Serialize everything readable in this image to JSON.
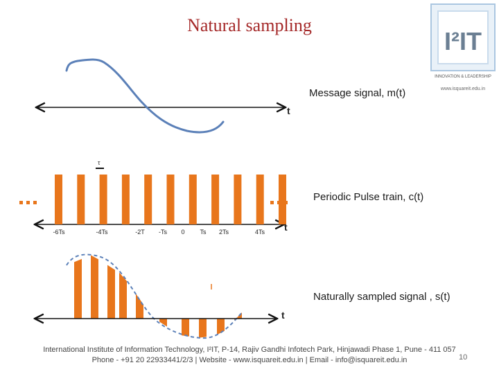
{
  "title": "Natural sampling",
  "labels": {
    "message": "Message signal, m(t)",
    "pulse": "Periodic Pulse train,  c(t)",
    "sampled": "Naturally sampled signal , s(t)",
    "t": "t",
    "tau": "τ"
  },
  "ticks": [
    "-6Ts",
    "-4Ts",
    "-2T",
    "-Ts",
    "0",
    "Ts",
    "2Ts",
    "4Ts"
  ],
  "logo": {
    "main": "I²IT",
    "tagline": "INNOVATION & LEADERSHIP",
    "url": "www.isquareit.edu.in"
  },
  "footer": {
    "line1": "International Institute of Information Technology, I²IT, P-14, Rajiv Gandhi Infotech Park, Hinjawadi Phase 1, Pune - 411 057",
    "line2": "Phone - +91 20 22933441/2/3 | Website - www.isquareit.edu.in | Email - info@isquareit.edu.in"
  },
  "page_number": "10",
  "colors": {
    "pulse": "#e8761c",
    "signal": "#5b80b8",
    "title": "#a52a2a"
  }
}
